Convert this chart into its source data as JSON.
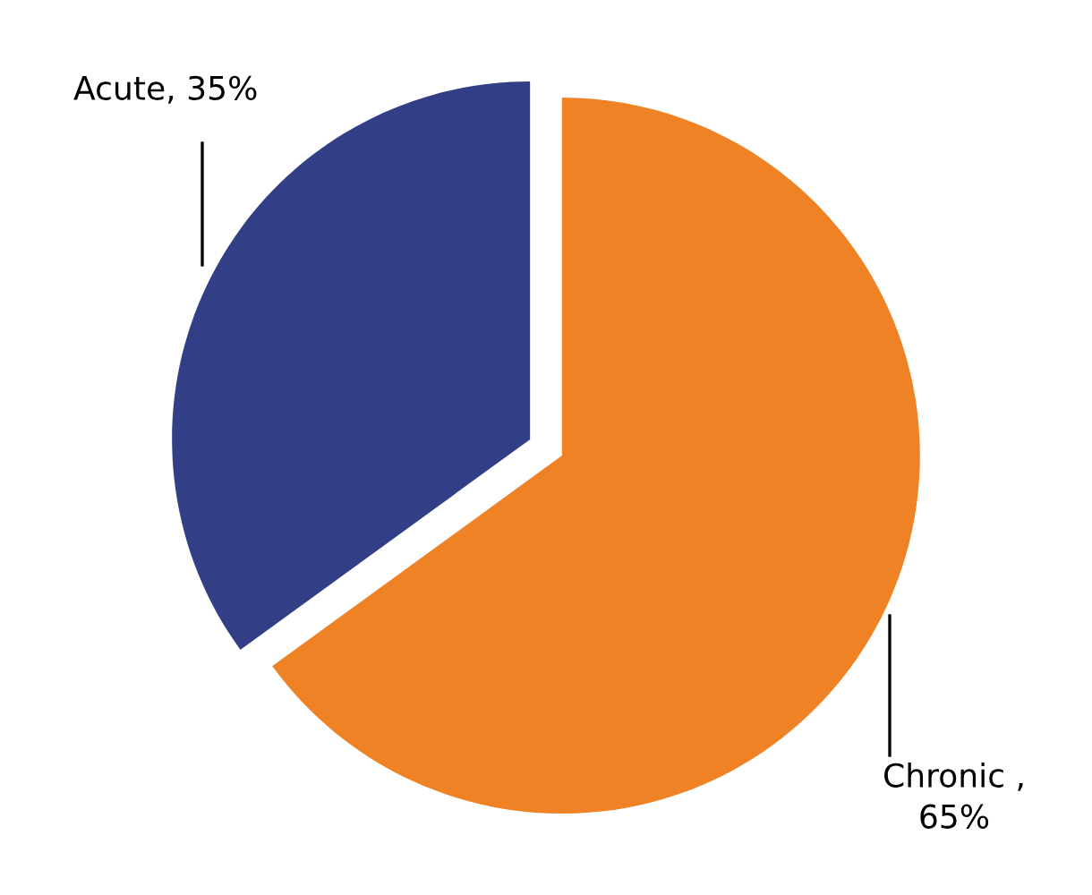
{
  "chart_data": {
    "type": "pie",
    "categories": [
      "Acute, 35%",
      "Chronic ,\n65%"
    ],
    "values": [
      35,
      65
    ],
    "colors": [
      "#323f87",
      "#ee8225"
    ],
    "legend": false
  }
}
